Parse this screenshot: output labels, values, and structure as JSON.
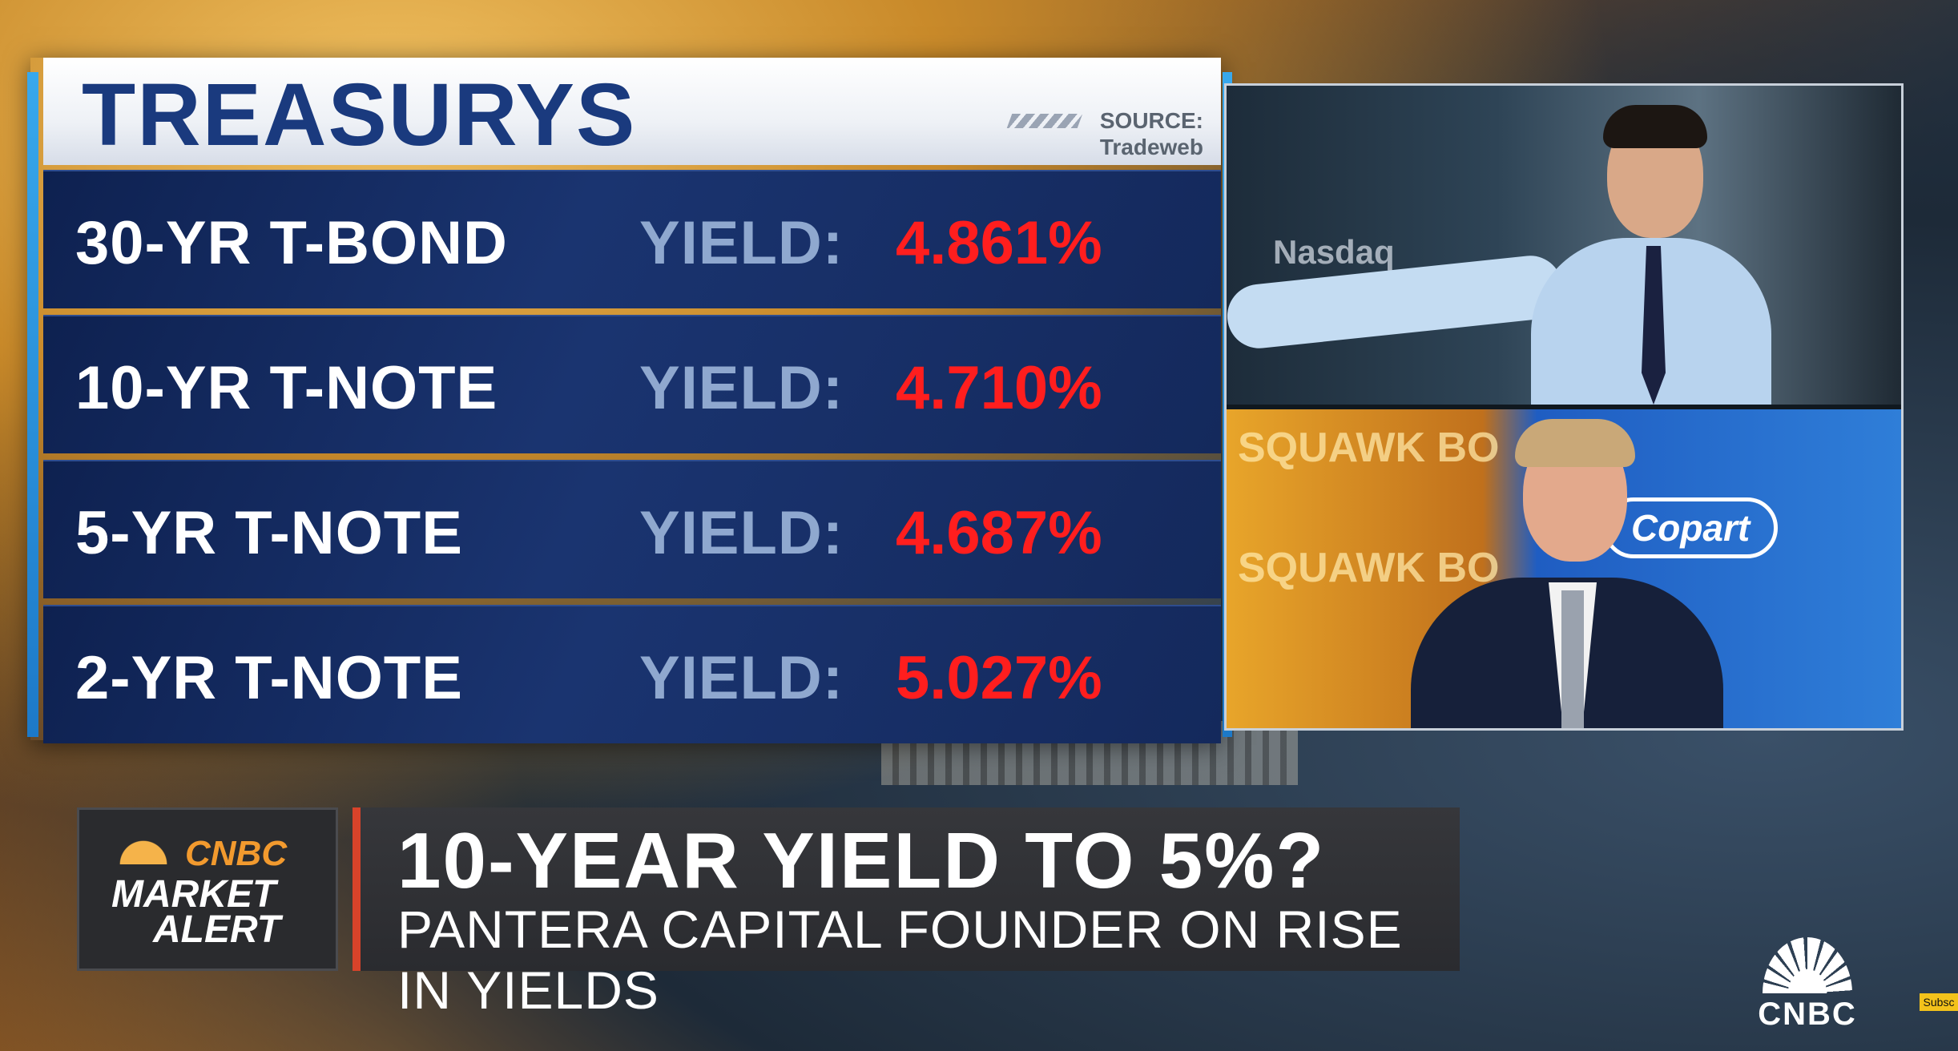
{
  "panel": {
    "title": "TREASURYS",
    "source_label": "SOURCE:",
    "source_name": "Tradeweb",
    "rows": [
      {
        "name": "30-YR T-BOND",
        "yield_label": "YIELD:",
        "yield_value": "4.861%"
      },
      {
        "name": "10-YR T-NOTE",
        "yield_label": "YIELD:",
        "yield_value": "4.710%"
      },
      {
        "name": "5-YR T-NOTE",
        "yield_label": "YIELD:",
        "yield_value": "4.687%"
      },
      {
        "name": "2-YR T-NOTE",
        "yield_label": "YIELD:",
        "yield_value": "5.027%"
      }
    ]
  },
  "video": {
    "top_background_text": "Nasdaq",
    "bottom_background_text_1": "SQUAWK BO",
    "bottom_background_text_2": "SQUAWK BO",
    "sponsor_text": "Copart"
  },
  "lower_third": {
    "alert_brand": "CNBC",
    "alert_line1": "MARKET",
    "alert_line2": "ALERT",
    "headline": "10-YEAR YIELD TO 5%?",
    "subheadline": "PANTERA CAPITAL FOUNDER ON RISE IN YIELDS"
  },
  "network_bug": {
    "text": "CNBC",
    "icon": "peacock-icon"
  },
  "subscribe_label": "Subsc",
  "colors": {
    "title_blue": "#1a3a7e",
    "yield_red": "#ff1e1e",
    "yield_label": "#8fa8cf",
    "accent_blue": "#38a8ec",
    "alert_orange": "#f29a2e",
    "headline_accent": "#d8432a"
  }
}
